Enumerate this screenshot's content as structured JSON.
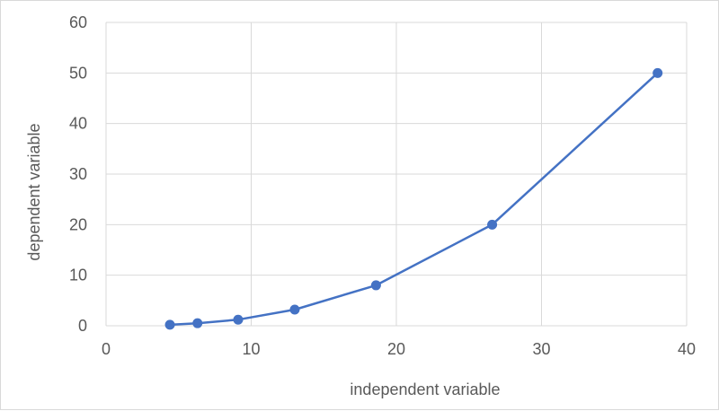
{
  "chart_data": {
    "type": "scatter",
    "title": "",
    "xlabel": "independent variable",
    "ylabel": "dependent variable",
    "xlim": [
      0,
      40
    ],
    "ylim": [
      0,
      60
    ],
    "x_ticks": [
      "0",
      "10",
      "20",
      "30",
      "40"
    ],
    "y_ticks": [
      "0",
      "10",
      "20",
      "30",
      "40",
      "50",
      "60"
    ],
    "x_tick_values": [
      0,
      10,
      20,
      30,
      40
    ],
    "y_tick_values": [
      0,
      10,
      20,
      30,
      40,
      50,
      60
    ],
    "grid": true,
    "legend": "none",
    "series": [
      {
        "color": "#4472c4",
        "x": [
          4.4,
          6.3,
          9.1,
          13.0,
          18.6,
          26.6,
          38.0
        ],
        "y": [
          0.2,
          0.5,
          1.2,
          3.2,
          8.0,
          20.0,
          50.0
        ]
      }
    ]
  }
}
